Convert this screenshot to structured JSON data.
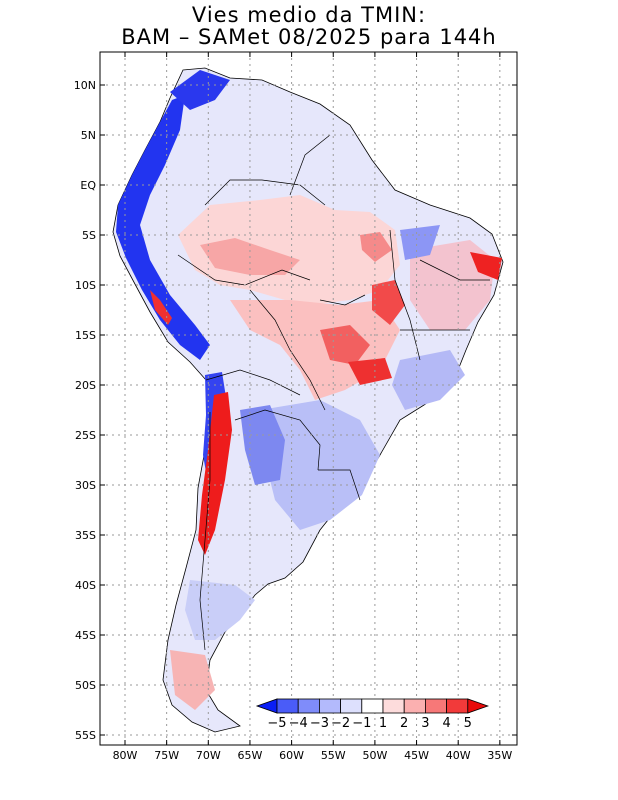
{
  "title": {
    "line1": "Vies medio da TMIN:",
    "line2": "BAM – SAMet 08/2025  para 144h"
  },
  "map": {
    "region": "South America",
    "lat_range": [
      -56,
      13
    ],
    "lon_range": [
      -83,
      -35
    ],
    "lat_ticks": [
      "10N",
      "5N",
      "EQ",
      "5S",
      "10S",
      "15S",
      "20S",
      "25S",
      "30S",
      "35S",
      "40S",
      "45S",
      "50S",
      "55S"
    ],
    "lat_values": [
      10,
      5,
      0,
      -5,
      -10,
      -15,
      -20,
      -25,
      -30,
      -35,
      -40,
      -45,
      -50,
      -55
    ],
    "lon_ticks": [
      "80W",
      "75W",
      "70W",
      "65W",
      "60W",
      "55W",
      "50W",
      "45W",
      "40W",
      "35W"
    ],
    "lon_values": [
      -80,
      -75,
      -70,
      -65,
      -60,
      -55,
      -50,
      -45,
      -40,
      -35
    ]
  },
  "colorbar": {
    "labels": [
      "−5",
      "−4",
      "−3",
      "−2",
      "−1",
      "1",
      "2",
      "3",
      "4",
      "5"
    ],
    "colors": [
      "#0a1ef5",
      "#4a5cf8",
      "#7f8cfa",
      "#b3bafc",
      "#dde0fd",
      "#ffffff",
      "#fddcdc",
      "#fbb0b0",
      "#f77878",
      "#f23a3a",
      "#e80a0a"
    ]
  }
}
